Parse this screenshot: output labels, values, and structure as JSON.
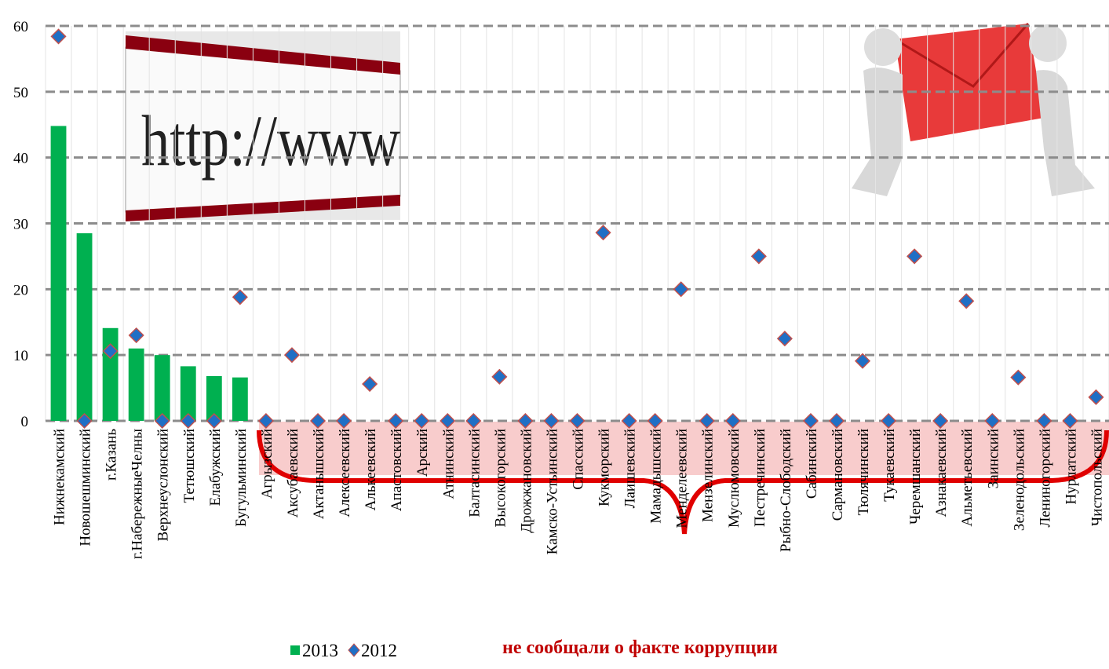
{
  "chart_data": {
    "type": "bar_scatter",
    "categories": [
      "Нижнекамский",
      "Новошешминский",
      "г.Казань",
      "г.НабережныеЧелны",
      "Верхнеуслонский",
      "Тетюшский",
      "Елабужский",
      "Бугульминский",
      "Агрызский",
      "Аксубаевский",
      "Актанышский",
      "Алексеевский",
      "Алькеевский",
      "Апастовский",
      "Арский",
      "Атнинский",
      "Балтасинский",
      "Высокогорский",
      "Дрожжановский",
      "Камско-Устьинский",
      "Спасский",
      "Кукморский",
      "Лаишевский",
      "Мамадышский",
      "Менделеевский",
      "Мензелинский",
      "Муслюмовский",
      "Пестречинский",
      "Рыбно-Слободский",
      "Сабинский",
      "Сармановский",
      "Тюлячинский",
      "Тукаевский",
      "Черемшанский",
      "Азнакаевский",
      "Альметьевский",
      "Заинский",
      "Зеленодольский",
      "Лениногорский",
      "Нурлатский",
      "Чистопольский"
    ],
    "series": [
      {
        "name": "2013",
        "kind": "bar",
        "color": "#00b050",
        "values": [
          44.8,
          28.5,
          14.1,
          11.0,
          10.0,
          8.3,
          6.8,
          6.6,
          0,
          0,
          0,
          0,
          0,
          0,
          0,
          0,
          0,
          0,
          0,
          0,
          0,
          0,
          0,
          0,
          0,
          0,
          0,
          0,
          0,
          0,
          0,
          0,
          0,
          0,
          0,
          0,
          0,
          0,
          0,
          0,
          0
        ]
      },
      {
        "name": "2012",
        "kind": "diamond",
        "color": "#1f6fc5",
        "values": [
          58.4,
          0,
          10.6,
          13.0,
          0,
          0,
          0,
          18.8,
          0,
          10,
          0,
          0,
          5.6,
          0,
          0,
          0,
          0,
          6.7,
          0,
          0,
          0,
          28.6,
          0,
          0,
          20,
          0,
          0,
          25,
          12.5,
          0,
          0,
          9.1,
          0,
          25,
          0,
          18.2,
          0,
          6.6,
          0,
          0,
          3.6
        ]
      }
    ],
    "ylim": [
      0,
      60
    ],
    "yticks": [
      0,
      10,
      20,
      30,
      40,
      50,
      60
    ],
    "grid": true,
    "annotation": "не сообщали о факте коррупции",
    "image_text": "http://www"
  }
}
